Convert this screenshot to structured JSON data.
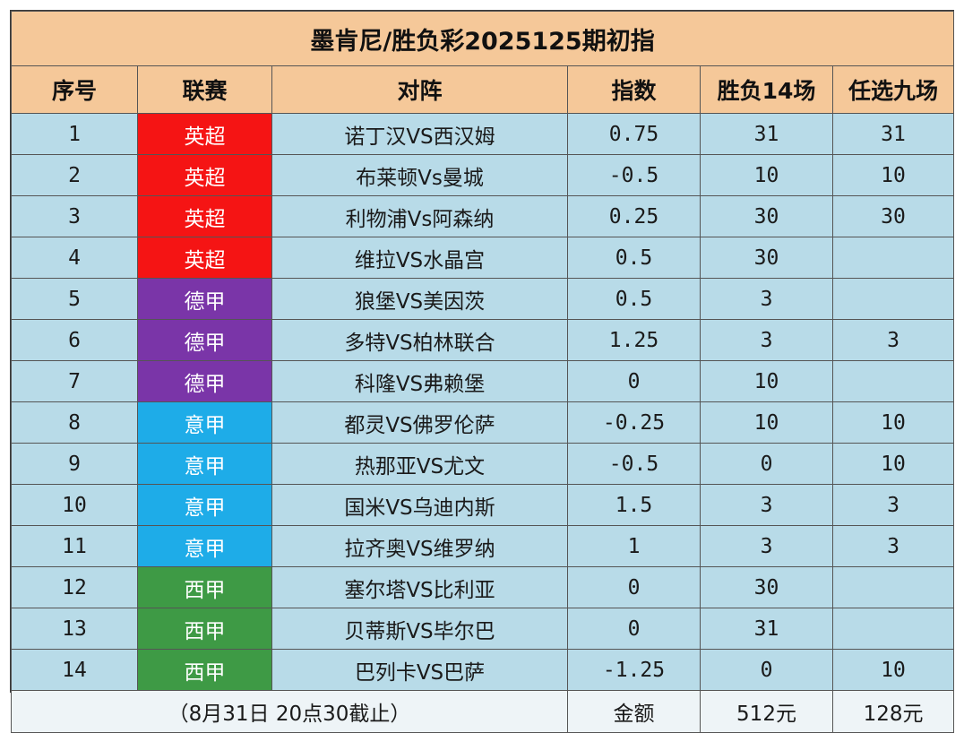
{
  "title": "墨肯尼/胜负彩2025125期初指",
  "headers": {
    "index": "序号",
    "league": "联赛",
    "match": "对阵",
    "odds": "指数",
    "sf14": "胜负14场",
    "r9": "任选九场"
  },
  "league_colors": {
    "英超": "#f51414",
    "德甲": "#7a35a8",
    "意甲": "#1eace8",
    "西甲": "#3e9a45"
  },
  "rows": [
    {
      "no": "1",
      "league": "英超",
      "match": "诺丁汉VS西汉姆",
      "odds": "0.75",
      "sf14": "31",
      "r9": "31"
    },
    {
      "no": "2",
      "league": "英超",
      "match": "布莱顿Vs曼城",
      "odds": "-0.5",
      "sf14": "10",
      "r9": "10"
    },
    {
      "no": "3",
      "league": "英超",
      "match": "利物浦Vs阿森纳",
      "odds": "0.25",
      "sf14": "30",
      "r9": "30"
    },
    {
      "no": "4",
      "league": "英超",
      "match": "维拉VS水晶宫",
      "odds": "0.5",
      "sf14": "30",
      "r9": ""
    },
    {
      "no": "5",
      "league": "德甲",
      "match": "狼堡VS美因茨",
      "odds": "0.5",
      "sf14": "3",
      "r9": ""
    },
    {
      "no": "6",
      "league": "德甲",
      "match": "多特VS柏林联合",
      "odds": "1.25",
      "sf14": "3",
      "r9": "3"
    },
    {
      "no": "7",
      "league": "德甲",
      "match": "科隆VS弗赖堡",
      "odds": "0",
      "sf14": "10",
      "r9": ""
    },
    {
      "no": "8",
      "league": "意甲",
      "match": "都灵VS佛罗伦萨",
      "odds": "-0.25",
      "sf14": "10",
      "r9": "10"
    },
    {
      "no": "9",
      "league": "意甲",
      "match": "热那亚VS尤文",
      "odds": "-0.5",
      "sf14": "0",
      "r9": "10"
    },
    {
      "no": "10",
      "league": "意甲",
      "match": "国米VS乌迪内斯",
      "odds": "1.5",
      "sf14": "3",
      "r9": "3"
    },
    {
      "no": "11",
      "league": "意甲",
      "match": "拉齐奥VS维罗纳",
      "odds": "1",
      "sf14": "3",
      "r9": "3"
    },
    {
      "no": "12",
      "league": "西甲",
      "match": "塞尔塔VS比利亚",
      "odds": "0",
      "sf14": "30",
      "r9": ""
    },
    {
      "no": "13",
      "league": "西甲",
      "match": "贝蒂斯VS毕尔巴",
      "odds": "0",
      "sf14": "31",
      "r9": ""
    },
    {
      "no": "14",
      "league": "西甲",
      "match": "巴列卡VS巴萨",
      "odds": "-1.25",
      "sf14": "0",
      "r9": "10"
    }
  ],
  "footer": {
    "deadline": "（8月31日  20点30截止）",
    "amount_label": "金额",
    "sf14_amount": "512元",
    "r9_amount": "128元"
  }
}
